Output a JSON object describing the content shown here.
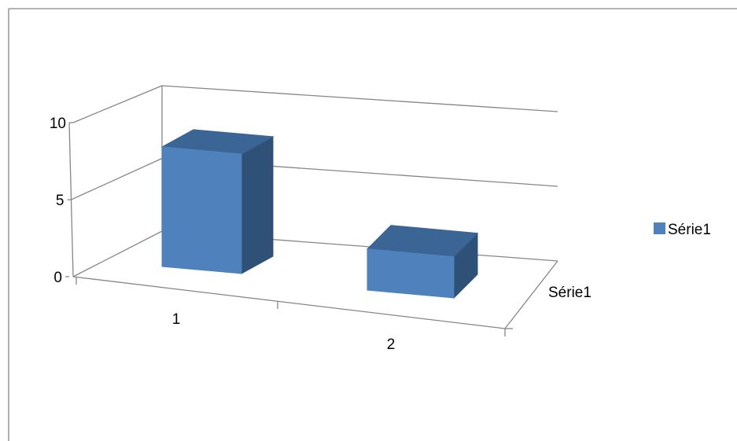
{
  "chart_data": {
    "type": "bar",
    "style": "3d-column",
    "categories": [
      "1",
      "2"
    ],
    "series": [
      {
        "name": "Série1",
        "values": [
          8,
          3
        ]
      }
    ],
    "ylim": [
      0,
      10
    ],
    "yticks": [
      "0",
      "5",
      "10"
    ],
    "depth_axis_label": "Série1",
    "legend": "right",
    "grid": true,
    "title": "",
    "xlabel": "",
    "ylabel": ""
  },
  "colors": {
    "front": "#4f81bd",
    "top": "#3a6595",
    "side": "#2f5077",
    "edge": "#385d8a",
    "axis": "#868686",
    "grid": "#868686",
    "frame": "#868686"
  }
}
